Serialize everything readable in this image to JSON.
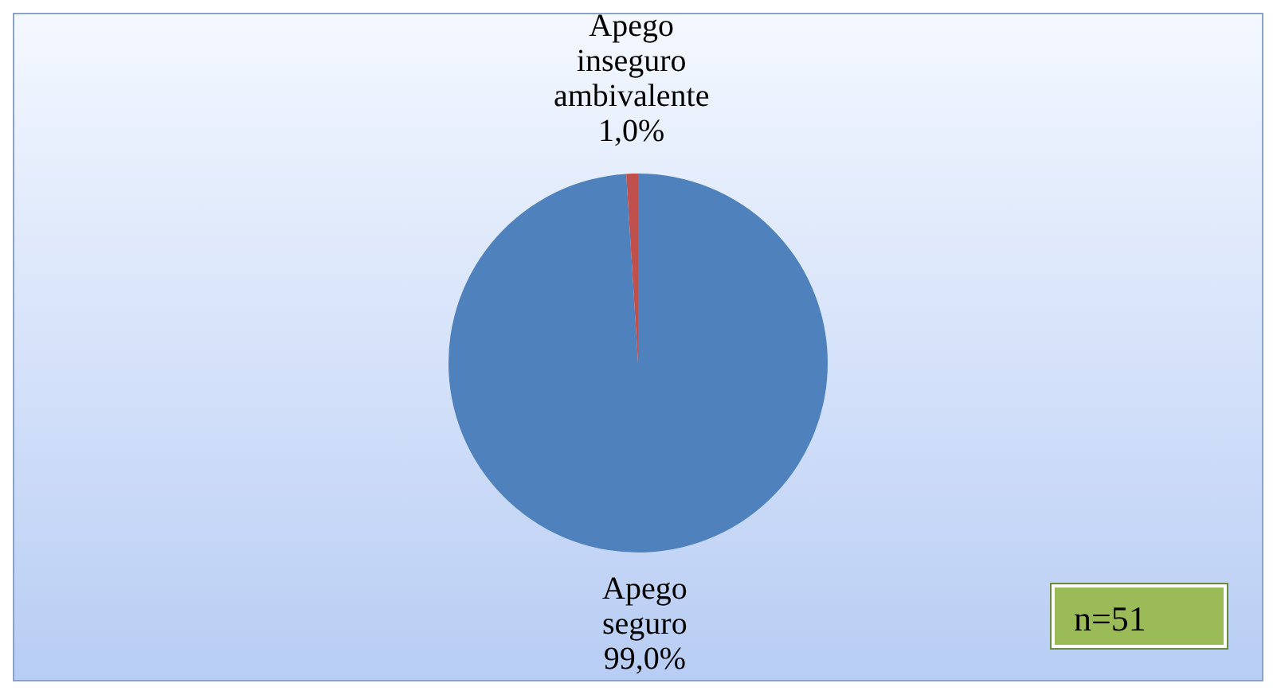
{
  "chart_data": {
    "type": "pie",
    "categories": [
      "Apego seguro",
      "Apego inseguro ambivalente"
    ],
    "values": [
      99.0,
      1.0
    ],
    "colors": [
      "#4f81bd",
      "#c0504d"
    ],
    "value_labels": [
      "99,0%",
      "1,0%"
    ],
    "legend": false,
    "annotations": [
      "n=51"
    ]
  }
}
